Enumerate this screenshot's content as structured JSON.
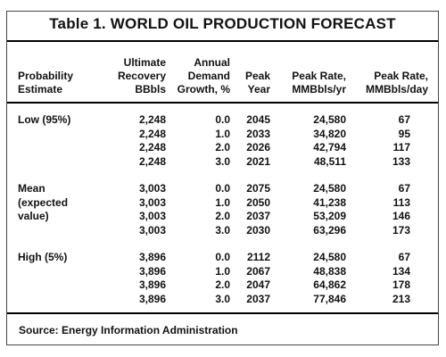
{
  "title": "Table 1.  WORLD OIL PRODUCTION FORECAST",
  "headers": {
    "probability": [
      "Probability",
      "Estimate"
    ],
    "recovery": [
      "Ultimate",
      "Recovery",
      "BBbls"
    ],
    "growth": [
      "Annual",
      "Demand",
      "Growth, %"
    ],
    "peak_year": [
      "Peak",
      "Year"
    ],
    "rate_yr": [
      "Peak Rate,",
      "MMBbls/yr"
    ],
    "rate_day": [
      "Peak Rate,",
      "MMBbls/day"
    ]
  },
  "groups": [
    {
      "label": [
        "Low (95%)"
      ],
      "rows": [
        [
          "2,248",
          "0.0",
          "2045",
          "24,580",
          "67"
        ],
        [
          "2,248",
          "1.0",
          "2033",
          "34,820",
          "95"
        ],
        [
          "2,248",
          "2.0",
          "2026",
          "42,794",
          "117"
        ],
        [
          "2,248",
          "3.0",
          "2021",
          "48,511",
          "133"
        ]
      ]
    },
    {
      "label": [
        "Mean",
        "(expected",
        "value)"
      ],
      "rows": [
        [
          "3,003",
          "0.0",
          "2075",
          "24,580",
          "67"
        ],
        [
          "3,003",
          "1.0",
          "2050",
          "41,238",
          "113"
        ],
        [
          "3,003",
          "2.0",
          "2037",
          "53,209",
          "146"
        ],
        [
          "3,003",
          "3.0",
          "2030",
          "63,296",
          "173"
        ]
      ]
    },
    {
      "label": [
        "High (5%)"
      ],
      "rows": [
        [
          "3,896",
          "0.0",
          "2112",
          "24,580",
          "67"
        ],
        [
          "3,896",
          "1.0",
          "2067",
          "48,838",
          "134"
        ],
        [
          "3,896",
          "2.0",
          "2047",
          "64,862",
          "178"
        ],
        [
          "3,896",
          "3.0",
          "2037",
          "77,846",
          "213"
        ]
      ]
    }
  ],
  "source": "Source:  Energy Information Administration"
}
